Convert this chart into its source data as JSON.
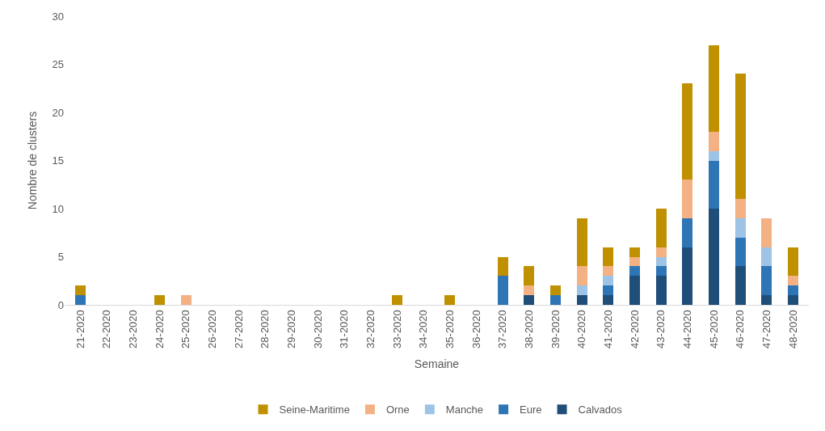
{
  "chart_data": {
    "type": "bar",
    "stacked": true,
    "xlabel": "Semaine",
    "ylabel": "Nombre de clusters",
    "categories": [
      "21-2020",
      "22-2020",
      "23-2020",
      "24-2020",
      "25-2020",
      "26-2020",
      "27-2020",
      "28-2020",
      "29-2020",
      "30-2020",
      "31-2020",
      "32-2020",
      "33-2020",
      "34-2020",
      "35-2020",
      "36-2020",
      "37-2020",
      "38-2020",
      "39-2020",
      "40-2020",
      "41-2020",
      "42-2020",
      "43-2020",
      "44-2020",
      "45-2020",
      "46-2020",
      "47-2020",
      "48-2020"
    ],
    "series": [
      {
        "name": "Calvados",
        "color": "#1f4e79",
        "values": [
          0,
          0,
          0,
          0,
          0,
          0,
          0,
          0,
          0,
          0,
          0,
          0,
          0,
          0,
          0,
          0,
          0,
          1,
          0,
          1,
          1,
          3,
          3,
          6,
          10,
          4,
          1,
          1
        ]
      },
      {
        "name": "Eure",
        "color": "#2e75b6",
        "values": [
          1,
          0,
          0,
          0,
          0,
          0,
          0,
          0,
          0,
          0,
          0,
          0,
          0,
          0,
          0,
          0,
          3,
          0,
          1,
          0,
          1,
          1,
          1,
          3,
          5,
          3,
          3,
          1
        ]
      },
      {
        "name": "Manche",
        "color": "#9dc3e6",
        "values": [
          0,
          0,
          0,
          0,
          0,
          0,
          0,
          0,
          0,
          0,
          0,
          0,
          0,
          0,
          0,
          0,
          0,
          0,
          0,
          1,
          1,
          0,
          1,
          0,
          1,
          2,
          2,
          0
        ]
      },
      {
        "name": "Orne",
        "color": "#f4b183",
        "values": [
          0,
          0,
          0,
          0,
          1,
          0,
          0,
          0,
          0,
          0,
          0,
          0,
          0,
          0,
          0,
          0,
          0,
          1,
          0,
          2,
          1,
          1,
          1,
          4,
          2,
          2,
          3,
          1
        ]
      },
      {
        "name": "Seine-Maritime",
        "color": "#bf9000",
        "values": [
          1,
          0,
          0,
          1,
          0,
          0,
          0,
          0,
          0,
          0,
          0,
          0,
          1,
          0,
          1,
          0,
          2,
          2,
          1,
          5,
          2,
          1,
          4,
          10,
          9,
          13,
          0,
          3
        ]
      }
    ],
    "ylim": [
      0,
      30
    ],
    "yticks": [
      0,
      5,
      10,
      15,
      20,
      25,
      30
    ],
    "grid": false,
    "legend": "bottom"
  }
}
